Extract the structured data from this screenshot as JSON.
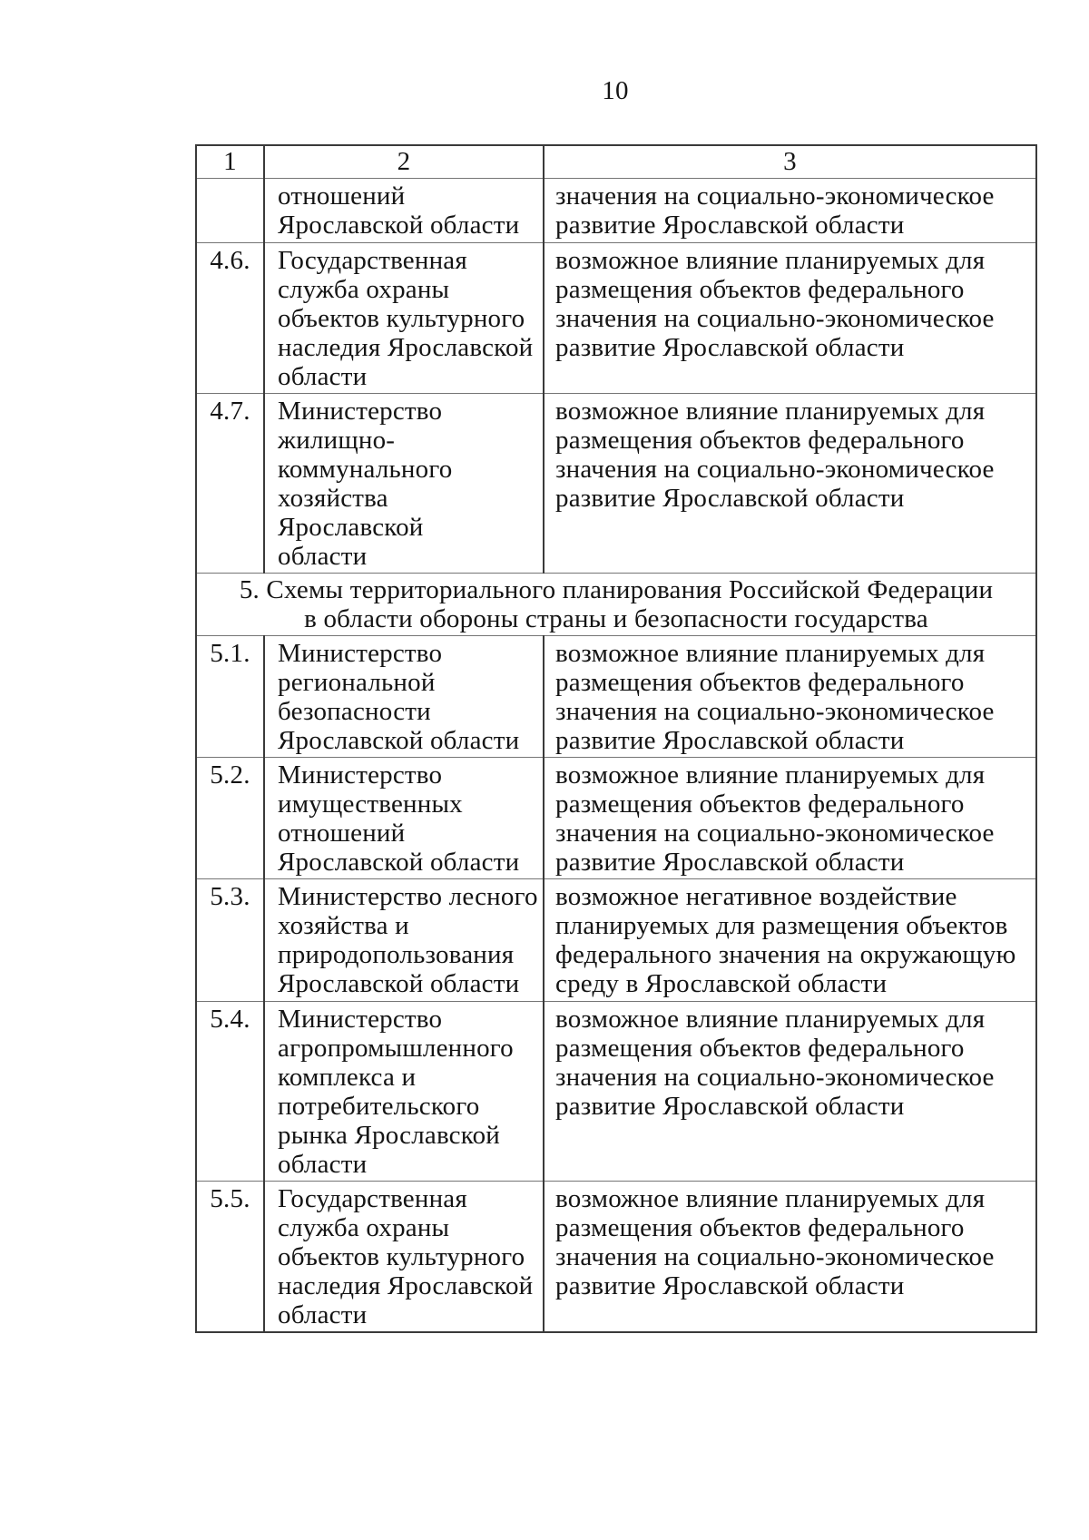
{
  "page_number": "10",
  "table": {
    "columns": [
      "1",
      "2",
      "3"
    ],
    "section5_title": "5. Схемы территориального планирования Российской Федерации\nв области обороны страны и безопасности государства",
    "rows": [
      {
        "num": "",
        "org": "отношений\nЯрославской области",
        "impact": "значения на социально-экономическое\nразвитие Ярославской области"
      },
      {
        "num": "4.6.",
        "org": "Государственная\nслужба охраны\nобъектов культурного\nнаследия Ярославской\nобласти",
        "impact": "возможное влияние планируемых для\nразмещения объектов федерального\nзначения на социально-экономическое\nразвитие Ярославской области"
      },
      {
        "num": "4.7.",
        "org": "Министерство\nжилищно-\nкоммунального\nхозяйства Ярославской\nобласти",
        "impact": "возможное влияние планируемых для\nразмещения объектов федерального\nзначения на социально-экономическое\nразвитие Ярославской области"
      },
      {
        "num": "5.1.",
        "org": "Министерство\nрегиональной\nбезопасности\nЯрославской области",
        "impact": "возможное влияние планируемых для\nразмещения объектов федерального\nзначения на социально-экономическое\nразвитие Ярославской области"
      },
      {
        "num": "5.2.",
        "org": "Министерство\nимущественных\nотношений\nЯрославской области",
        "impact": "возможное влияние планируемых для\nразмещения объектов федерального\nзначения на социально-экономическое\nразвитие Ярославской области"
      },
      {
        "num": "5.3.",
        "org": "Министерство лесного\nхозяйства и\nприродопользования\nЯрославской области",
        "impact": "возможное негативное воздействие\nпланируемых для размещения объектов\nфедерального значения на окружающую\nсреду в Ярославской области"
      },
      {
        "num": "5.4.",
        "org": "Министерство\nагропромышленного\nкомплекса и\nпотребительского\nрынка Ярославской\nобласти",
        "impact": "возможное влияние планируемых для\nразмещения объектов федерального\nзначения на социально-экономическое\nразвитие Ярославской области"
      },
      {
        "num": "5.5.",
        "org": "Государственная\nслужба охраны\nобъектов культурного\nнаследия Ярославской\nобласти",
        "impact": "возможное влияние планируемых для\nразмещения объектов федерального\nзначения на социально-экономическое\nразвитие Ярославской области"
      }
    ]
  }
}
